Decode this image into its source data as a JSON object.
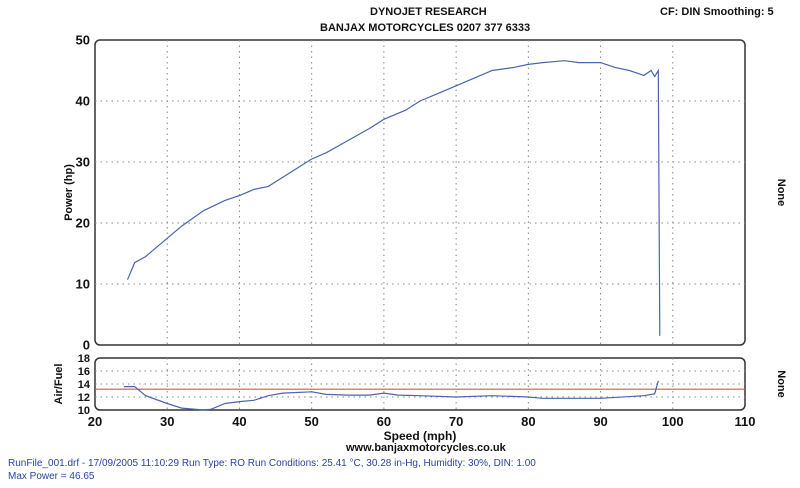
{
  "header": {
    "title": "DYNOJET RESEARCH",
    "subtitle": "BANJAX MOTORCYCLES 0207 377 6333",
    "settings": "CF: DIN  Smoothing: 5"
  },
  "website": "www.banjaxmotorcycles.co.uk",
  "footer": {
    "run_info": "RunFile_001.drf - 17/09/2005 11:10:29  Run Type: RO  Run Conditions: 25.41 °C, 30.28 in-Hg,  Humidity:  30%, DIN: 1.00",
    "max_power": "Max Power = 46.65"
  },
  "colors": {
    "curve": "#4a64b0",
    "reference": "#e05050"
  },
  "chart_data": [
    {
      "type": "line",
      "xlabel": "Speed (mph)",
      "ylabel": "Power (hp)",
      "right_label": "None",
      "xlim": [
        20,
        110
      ],
      "ylim": [
        0,
        50
      ],
      "xticks": [
        20,
        30,
        40,
        50,
        60,
        70,
        80,
        90,
        100,
        110
      ],
      "yticks": [
        0,
        10,
        20,
        30,
        40,
        50
      ],
      "grid": true,
      "x": [
        24.5,
        25.5,
        27,
        28,
        30,
        32,
        35,
        38,
        40,
        42,
        44,
        46,
        50,
        52,
        55,
        58,
        60,
        63,
        65,
        68,
        70,
        73,
        75,
        78,
        80,
        82,
        85,
        87,
        90,
        92,
        94,
        96,
        97,
        97.5,
        98,
        98.2
      ],
      "y": [
        10.7,
        13.5,
        14.5,
        15.5,
        17.5,
        19.5,
        22,
        23.7,
        24.5,
        25.5,
        26,
        27.5,
        30.5,
        31.5,
        33.5,
        35.5,
        37,
        38.5,
        40,
        41.5,
        42.5,
        44,
        45,
        45.5,
        46,
        46.3,
        46.6,
        46.3,
        46.3,
        45.5,
        45,
        44.2,
        45,
        44,
        45,
        1.5
      ]
    },
    {
      "type": "line",
      "ylabel": "Air/Fuel",
      "right_label": "None",
      "xlim": [
        20,
        110
      ],
      "ylim": [
        10,
        18
      ],
      "yticks": [
        10,
        12,
        14,
        16,
        18
      ],
      "grid": true,
      "reference_line": 13.2,
      "x": [
        24,
        25.5,
        27,
        30,
        32,
        35,
        36,
        38,
        40,
        42,
        44,
        46,
        50,
        52,
        55,
        58,
        60,
        62,
        65,
        70,
        75,
        80,
        82,
        90,
        96,
        97.5,
        98
      ],
      "y": [
        13.6,
        13.6,
        12.2,
        11,
        10.3,
        10,
        10.1,
        11,
        11.3,
        11.5,
        12.2,
        12.6,
        12.8,
        12.4,
        12.3,
        12.3,
        12.6,
        12.3,
        12.2,
        12,
        12.2,
        12,
        11.8,
        11.8,
        12.2,
        12.5,
        14.5
      ]
    }
  ]
}
